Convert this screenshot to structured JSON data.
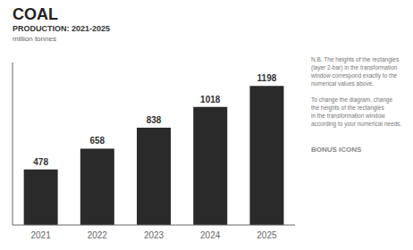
{
  "chart_data": {
    "type": "bar",
    "title": "COAL",
    "subtitle": "PRODUCTION: 2021-2025",
    "annotations": [
      "million tonnes",
      "N.B. The heights of the rectangles\n(layer 2-bar) in the transformation\nwindow correspond exactly to the\nnumerical values above.\n\nTo change the diagram, change\nthe heights of the rectangles\nin the transformation window\naccording to your numerical needs.",
      "BONUS ICONS"
    ],
    "categories": [
      "2021",
      "2022",
      "2023",
      "2024",
      "2025"
    ],
    "values": [
      478,
      658,
      838,
      1018,
      1198
    ],
    "color": "#2a2a2a",
    "ylim": [
      0,
      1400
    ],
    "grid": false,
    "data_labels": true,
    "tick_labels": "x"
  }
}
